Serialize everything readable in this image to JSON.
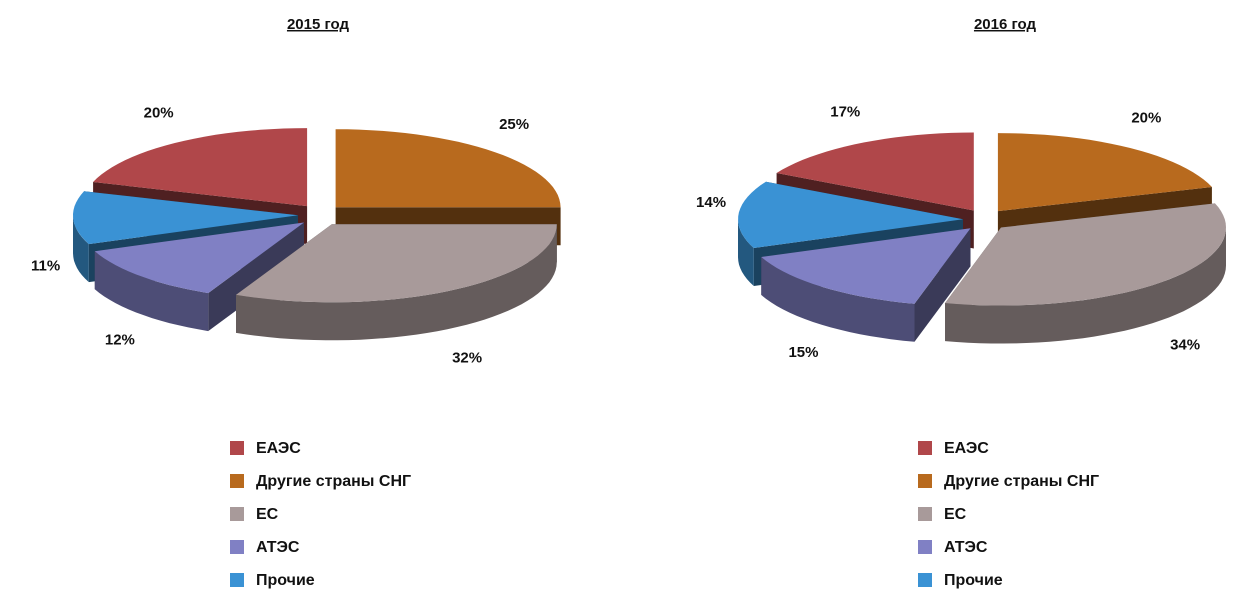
{
  "chart_data": [
    {
      "type": "pie",
      "title": "2015 год",
      "categories": [
        "ЕАЭС",
        "Другие страны СНГ",
        "ЕС",
        "АТЭС",
        "Прочие"
      ],
      "values": [
        20,
        25,
        32,
        12,
        11
      ],
      "value_labels": [
        "20%",
        "25%",
        "32%",
        "12%",
        "11%"
      ],
      "colors": [
        "#b0474a",
        "#b86a1e",
        "#a89a9a",
        "#8080c4",
        "#3a92d4"
      ]
    },
    {
      "type": "pie",
      "title": "2016 год",
      "categories": [
        "ЕАЭС",
        "Другие страны СНГ",
        "ЕС",
        "АТЭС",
        "Прочие"
      ],
      "values": [
        17,
        20,
        34,
        15,
        14
      ],
      "value_labels": [
        "17%",
        "20%",
        "34%",
        "15%",
        "14%"
      ],
      "colors": [
        "#b0474a",
        "#b86a1e",
        "#a89a9a",
        "#8080c4",
        "#3a92d4"
      ]
    }
  ]
}
